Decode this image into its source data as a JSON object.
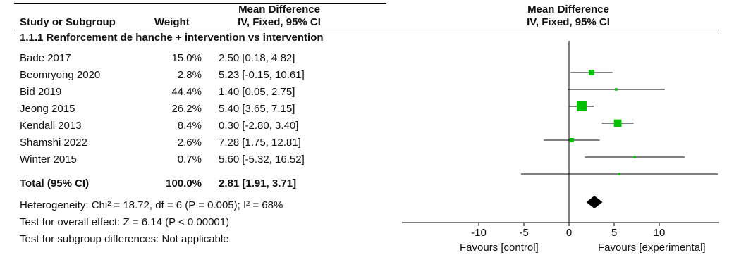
{
  "table": {
    "header": {
      "mean_difference": "Mean Difference",
      "study_or_subgroup": "Study or Subgroup",
      "weight": "Weight",
      "method": "IV, Fixed, 95% CI"
    },
    "subgroup_title": "1.1.1 Renforcement de hanche + intervention vs intervention",
    "studies": [
      {
        "name": "Bade 2017",
        "weight": "15.0%",
        "ci_text": "2.50 [0.18, 4.82]"
      },
      {
        "name": "Beomryong 2020",
        "weight": "2.8%",
        "ci_text": "5.23 [-0.15, 10.61]"
      },
      {
        "name": "Bid 2019",
        "weight": "44.4%",
        "ci_text": "1.40 [0.05, 2.75]"
      },
      {
        "name": "Jeong 2015",
        "weight": "26.2%",
        "ci_text": "5.40 [3.65, 7.15]"
      },
      {
        "name": "Kendall 2013",
        "weight": "8.4%",
        "ci_text": "0.30 [-2.80, 3.40]"
      },
      {
        "name": "Shamshi 2022",
        "weight": "2.6%",
        "ci_text": "7.28 [1.75, 12.81]"
      },
      {
        "name": "Winter 2015",
        "weight": "0.7%",
        "ci_text": "5.60 [-5.32, 16.52]"
      }
    ],
    "total": {
      "name": "Total (95% CI)",
      "weight": "100.0%",
      "ci_text": "2.81 [1.91, 3.71]"
    },
    "footer": {
      "heterogeneity": "Heterogeneity: Chi² = 18.72, df = 6 (P = 0.005); I² = 68%",
      "overall_effect": "Test for overall effect: Z = 6.14 (P < 0.00001)",
      "subgroup_diff": "Test for subgroup differences: Not applicable"
    }
  },
  "plot": {
    "header_title": "Mean Difference",
    "header_method": "IV, Fixed, 95% CI",
    "favours_control": "Favours [control]",
    "favours_experimental": "Favours [experimental]"
  },
  "chart_data": {
    "type": "forest",
    "xlim": [
      -10,
      10
    ],
    "ticks": [
      "-10",
      "-5",
      "0",
      "5",
      "10"
    ],
    "tick_values": [
      -10,
      -5,
      0,
      5,
      10
    ],
    "studies": [
      {
        "name": "Bade 2017",
        "md": 2.5,
        "lower": 0.18,
        "upper": 4.82,
        "weight": 15.0
      },
      {
        "name": "Beomryong 2020",
        "md": 5.23,
        "lower": -0.15,
        "upper": 10.61,
        "weight": 2.8
      },
      {
        "name": "Bid 2019",
        "md": 1.4,
        "lower": 0.05,
        "upper": 2.75,
        "weight": 44.4
      },
      {
        "name": "Jeong 2015",
        "md": 5.4,
        "lower": 3.65,
        "upper": 7.15,
        "weight": 26.2
      },
      {
        "name": "Kendall 2013",
        "md": 0.3,
        "lower": -2.8,
        "upper": 3.4,
        "weight": 8.4
      },
      {
        "name": "Shamshi 2022",
        "md": 7.28,
        "lower": 1.75,
        "upper": 12.81,
        "weight": 2.6
      },
      {
        "name": "Winter 2015",
        "md": 5.6,
        "lower": -5.32,
        "upper": 16.52,
        "weight": 0.7
      }
    ],
    "total": {
      "md": 2.81,
      "lower": 1.91,
      "upper": 3.71
    },
    "colors": {
      "study_marker": "#00c000",
      "total_marker": "#000000",
      "line": "#000000"
    }
  }
}
